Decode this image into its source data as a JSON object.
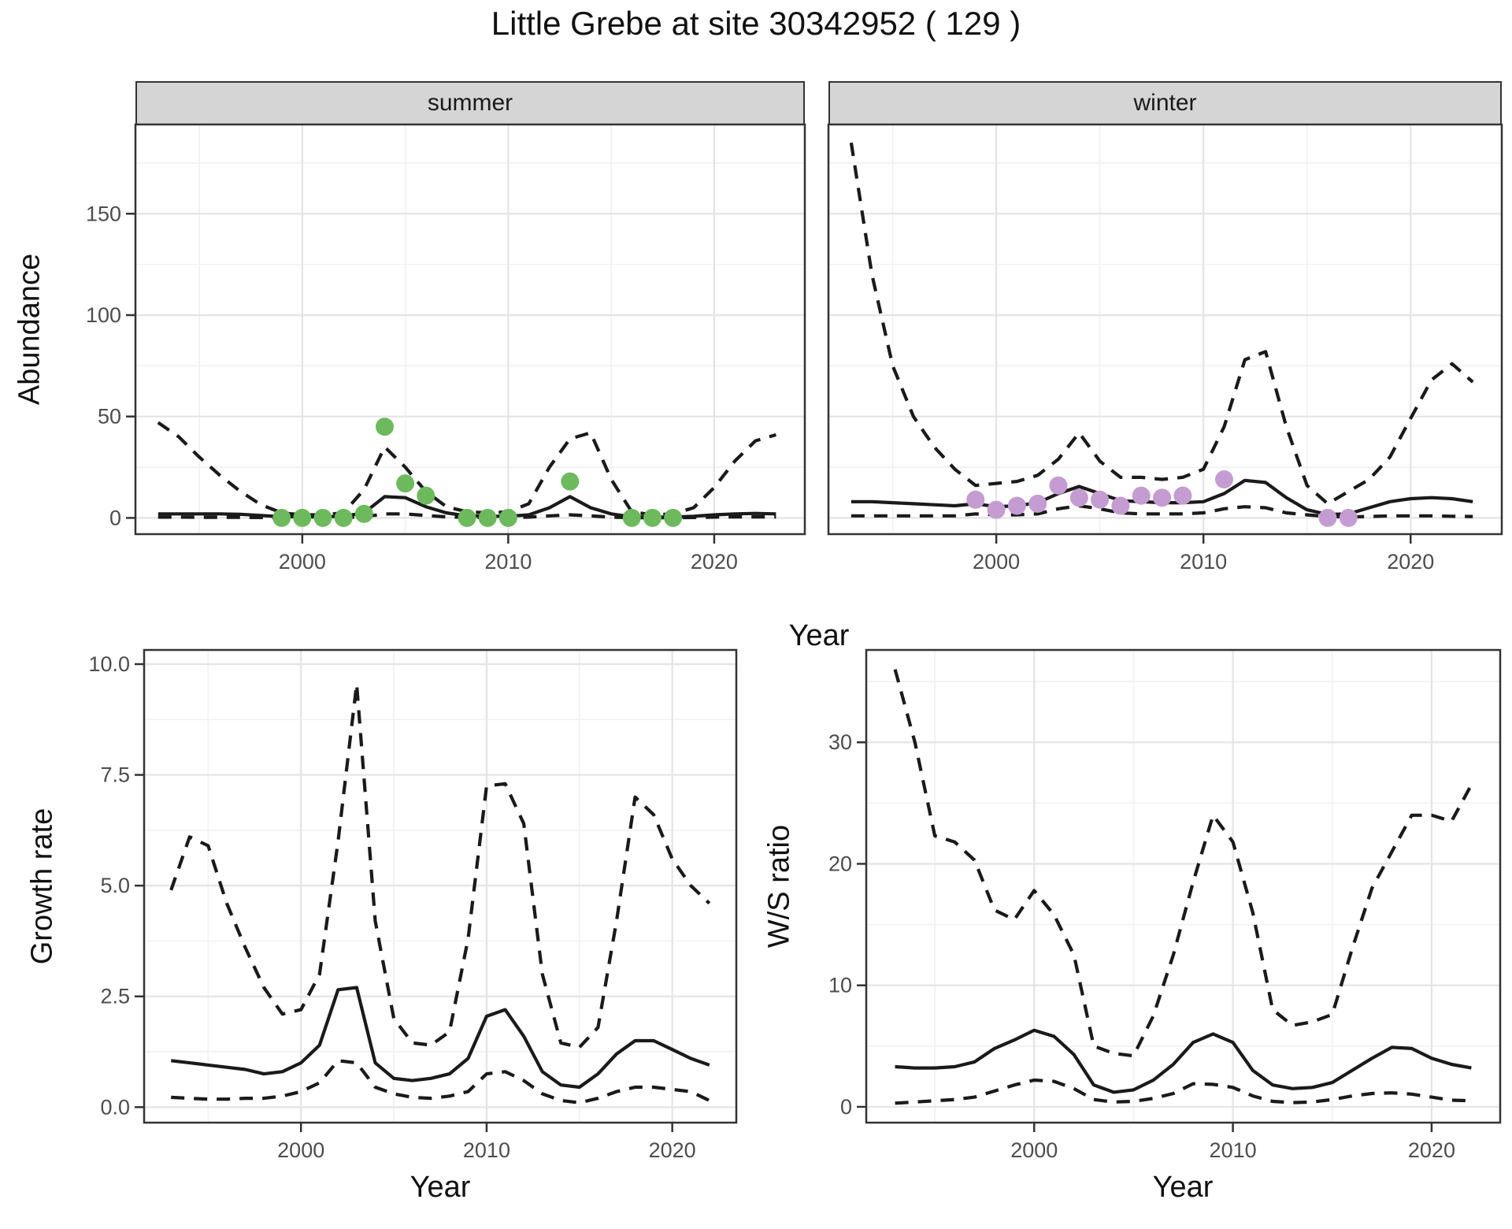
{
  "title": "Little Grebe at site 30342952 ( 129 )",
  "labels": {
    "year": "Year",
    "abundance": "Abundance",
    "growth_rate": "Growth rate",
    "ws_ratio": "W/S ratio"
  },
  "colors": {
    "summer_point": "#6cba5c",
    "winter_point": "#c49cd1",
    "line": "#1a1a1a",
    "strip_bg": "#d5d5d5",
    "panel_border": "#333333",
    "grid_major": "#e4e4e4",
    "grid_minor": "#f1f1f1",
    "tick_label": "#4d4d4d"
  },
  "chart_data": [
    {
      "id": "abundance-summer",
      "type": "line+scatter",
      "facet": "summer",
      "xlabel": "Year",
      "ylabel": "Abundance",
      "xlim": [
        1991.9,
        2024.4
      ],
      "ylim": [
        -8,
        194
      ],
      "xticks": [
        2000,
        2010,
        2020
      ],
      "xtick_labels": [
        "2000",
        "2010",
        "2020"
      ],
      "yticks": [
        0,
        50,
        100,
        150
      ],
      "ytick_labels": [
        "0",
        "50",
        "100",
        "150"
      ],
      "xminor": [
        1995,
        2005,
        2015
      ],
      "yminor": [
        25,
        75,
        125,
        175
      ],
      "x": [
        1993,
        1994,
        1995,
        1996,
        1997,
        1998,
        1999,
        2000,
        2001,
        2002,
        2003,
        2004,
        2005,
        2006,
        2007,
        2008,
        2009,
        2010,
        2011,
        2012,
        2013,
        2014,
        2015,
        2016,
        2017,
        2018,
        2019,
        2020,
        2021,
        2022,
        2023
      ],
      "series": [
        {
          "name": "median",
          "style": "solid",
          "values": [
            2,
            2,
            2,
            2,
            1.8,
            1.2,
            0.6,
            0.5,
            0.5,
            0.8,
            2.5,
            10.5,
            10,
            5.5,
            2.5,
            1,
            0.8,
            0.8,
            1.5,
            5,
            10.5,
            5,
            2,
            0.5,
            0.4,
            0.4,
            0.8,
            1.5,
            2,
            2.2,
            2
          ]
        },
        {
          "name": "upper_95ci",
          "style": "dashed",
          "values": [
            47,
            40,
            30,
            21,
            13,
            6.5,
            2.5,
            1.5,
            1.5,
            2.5,
            14,
            35,
            25,
            13,
            5.5,
            3,
            2.5,
            3,
            7,
            25,
            39,
            42,
            19,
            3,
            1.5,
            2,
            5,
            15,
            28,
            38,
            41
          ]
        },
        {
          "name": "lower_95ci",
          "style": "dashed",
          "values": [
            0.4,
            0.4,
            0.3,
            0.3,
            0.3,
            0.2,
            0.1,
            0.1,
            0.1,
            0.2,
            0.6,
            2,
            2,
            1.2,
            0.5,
            0.2,
            0.2,
            0.2,
            0.4,
            1,
            1.5,
            1,
            0.4,
            0.1,
            0.1,
            0.1,
            0.2,
            0.4,
            0.5,
            0.5,
            0.5
          ]
        }
      ],
      "points": {
        "name": "observed-counts-summer",
        "color": "#6cba5c",
        "x": [
          1999,
          2000,
          2001,
          2002,
          2003,
          2004,
          2005,
          2006,
          2008,
          2009,
          2010,
          2013,
          2016,
          2017,
          2018
        ],
        "y": [
          0,
          0,
          0,
          0,
          2,
          45,
          17,
          11,
          0,
          0,
          0,
          18,
          0,
          0,
          0
        ]
      }
    },
    {
      "id": "abundance-winter",
      "type": "line+scatter",
      "facet": "winter",
      "xlabel": "Year",
      "ylabel": "Abundance",
      "xlim": [
        1991.9,
        2024.4
      ],
      "ylim": [
        -8,
        194
      ],
      "xticks": [
        2000,
        2010,
        2020
      ],
      "xtick_labels": [
        "2000",
        "2010",
        "2020"
      ],
      "yticks": [
        0,
        50,
        100,
        150
      ],
      "ytick_labels": [
        "0",
        "50",
        "100",
        "150"
      ],
      "xminor": [
        1995,
        2005,
        2015
      ],
      "yminor": [
        25,
        75,
        125,
        175
      ],
      "x": [
        1993,
        1994,
        1995,
        1996,
        1997,
        1998,
        1999,
        2000,
        2001,
        2002,
        2003,
        2004,
        2005,
        2006,
        2007,
        2008,
        2009,
        2010,
        2011,
        2012,
        2013,
        2014,
        2015,
        2016,
        2017,
        2018,
        2019,
        2020,
        2021,
        2022,
        2023
      ],
      "series": [
        {
          "name": "median",
          "style": "solid",
          "values": [
            8,
            8,
            7.5,
            7,
            6.5,
            6,
            7,
            5.5,
            6,
            7.5,
            12,
            15.5,
            12,
            8.5,
            8,
            7.5,
            7.5,
            8,
            12,
            18.5,
            17.5,
            10,
            4,
            1.7,
            2,
            5,
            8,
            9.5,
            10,
            9.5,
            8
          ]
        },
        {
          "name": "upper_95ci",
          "style": "dashed",
          "values": [
            185,
            120,
            75,
            50,
            35,
            24,
            16,
            17,
            18,
            21,
            29,
            42,
            28,
            20,
            20,
            19,
            20,
            24,
            45,
            78,
            82,
            45,
            16,
            7,
            13,
            19,
            30,
            49,
            68,
            76,
            67
          ]
        },
        {
          "name": "lower_95ci",
          "style": "dashed",
          "values": [
            1,
            1,
            1,
            1,
            1,
            1,
            2,
            1.5,
            1.5,
            2,
            4.5,
            6,
            4.5,
            2.5,
            2,
            2,
            2,
            2.5,
            4.5,
            5.5,
            5,
            2.5,
            1.5,
            0.7,
            0.5,
            0.7,
            1,
            1,
            1,
            0.8,
            0.7
          ]
        }
      ],
      "points": {
        "name": "observed-counts-winter",
        "color": "#c49cd1",
        "x": [
          1999,
          2000,
          2001,
          2002,
          2003,
          2004,
          2005,
          2006,
          2007,
          2008,
          2009,
          2011,
          2016,
          2017
        ],
        "y": [
          9,
          4,
          6,
          7,
          16,
          10,
          9,
          6,
          11,
          10,
          11,
          19,
          0,
          0
        ]
      }
    },
    {
      "id": "growth-rate",
      "type": "line",
      "xlabel": "Year",
      "ylabel": "Growth rate",
      "xlim": [
        1991.55,
        2023.45
      ],
      "ylim": [
        -0.35,
        10.32
      ],
      "xticks": [
        2000,
        2010,
        2020
      ],
      "xtick_labels": [
        "2000",
        "2010",
        "2020"
      ],
      "yticks": [
        0,
        2.5,
        5,
        7.5,
        10
      ],
      "ytick_labels": [
        "0.0",
        "2.5",
        "5.0",
        "7.5",
        "10.0"
      ],
      "xminor": [
        1995,
        2005,
        2015
      ],
      "yminor": [
        1.25,
        3.75,
        6.25,
        8.75
      ],
      "x": [
        1993,
        1994,
        1995,
        1996,
        1997,
        1998,
        1999,
        2000,
        2001,
        2002,
        2003,
        2004,
        2005,
        2006,
        2007,
        2008,
        2009,
        2010,
        2011,
        2012,
        2013,
        2014,
        2015,
        2016,
        2017,
        2018,
        2019,
        2020,
        2021,
        2022
      ],
      "series": [
        {
          "name": "median",
          "style": "solid",
          "values": [
            1.05,
            1.0,
            0.95,
            0.9,
            0.85,
            0.75,
            0.8,
            1.0,
            1.4,
            2.65,
            2.7,
            1.0,
            0.65,
            0.6,
            0.65,
            0.75,
            1.1,
            2.05,
            2.2,
            1.6,
            0.8,
            0.5,
            0.45,
            0.75,
            1.2,
            1.5,
            1.5,
            1.3,
            1.1,
            0.95
          ]
        },
        {
          "name": "upper_95ci",
          "style": "dashed",
          "values": [
            4.9,
            6.1,
            5.9,
            4.6,
            3.6,
            2.7,
            2.1,
            2.2,
            3.0,
            6.0,
            9.55,
            4.2,
            2.0,
            1.45,
            1.4,
            1.7,
            3.8,
            7.25,
            7.3,
            6.4,
            3.0,
            1.45,
            1.35,
            1.8,
            4.2,
            7.0,
            6.6,
            5.6,
            5.0,
            4.6
          ]
        },
        {
          "name": "lower_95ci",
          "style": "dashed",
          "values": [
            0.22,
            0.2,
            0.18,
            0.18,
            0.2,
            0.2,
            0.25,
            0.35,
            0.55,
            1.05,
            1.0,
            0.45,
            0.3,
            0.22,
            0.2,
            0.25,
            0.35,
            0.75,
            0.8,
            0.6,
            0.3,
            0.15,
            0.1,
            0.2,
            0.35,
            0.45,
            0.45,
            0.4,
            0.35,
            0.15
          ]
        }
      ]
    },
    {
      "id": "ws-ratio",
      "type": "line",
      "xlabel": "Year",
      "ylabel": "W/S ratio",
      "xlim": [
        1991.55,
        2023.45
      ],
      "ylim": [
        -1.3,
        37.6
      ],
      "xticks": [
        2000,
        2010,
        2020
      ],
      "xtick_labels": [
        "2000",
        "2010",
        "2020"
      ],
      "yticks": [
        0,
        10,
        20,
        30
      ],
      "ytick_labels": [
        "0",
        "10",
        "20",
        "30"
      ],
      "xminor": [
        1995,
        2005,
        2015
      ],
      "yminor": [
        5,
        15,
        25,
        35
      ],
      "x": [
        1993,
        1994,
        1995,
        1996,
        1997,
        1998,
        1999,
        2000,
        2001,
        2002,
        2003,
        2004,
        2005,
        2006,
        2007,
        2008,
        2009,
        2010,
        2011,
        2012,
        2013,
        2014,
        2015,
        2016,
        2017,
        2018,
        2019,
        2020,
        2021,
        2022
      ],
      "series": [
        {
          "name": "median",
          "style": "solid",
          "values": [
            3.3,
            3.2,
            3.2,
            3.3,
            3.7,
            4.8,
            5.5,
            6.3,
            5.8,
            4.3,
            1.8,
            1.2,
            1.4,
            2.2,
            3.5,
            5.3,
            6.0,
            5.3,
            3.0,
            1.8,
            1.5,
            1.6,
            2.0,
            3.0,
            4.0,
            4.9,
            4.8,
            4.0,
            3.5,
            3.2
          ]
        },
        {
          "name": "upper_95ci",
          "style": "dashed",
          "values": [
            36,
            30,
            22.3,
            21.8,
            20.3,
            16.2,
            15.4,
            17.8,
            15.8,
            12.5,
            5.0,
            4.4,
            4.2,
            7.5,
            12.5,
            18.5,
            24,
            21.8,
            16,
            8,
            6.7,
            7,
            7.6,
            13,
            18,
            21,
            24,
            24,
            23.5,
            26.5
          ]
        },
        {
          "name": "lower_95ci",
          "style": "dashed",
          "values": [
            0.3,
            0.4,
            0.5,
            0.6,
            0.8,
            1.3,
            1.8,
            2.2,
            2.1,
            1.5,
            0.6,
            0.4,
            0.45,
            0.7,
            1.1,
            1.9,
            1.85,
            1.6,
            0.9,
            0.45,
            0.35,
            0.4,
            0.6,
            0.9,
            1.1,
            1.15,
            1.05,
            0.8,
            0.55,
            0.5
          ]
        }
      ]
    }
  ]
}
